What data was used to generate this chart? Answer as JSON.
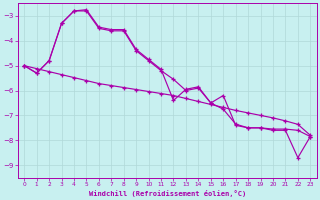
{
  "xlabel": "Windchill (Refroidissement éolien,°C)",
  "background_color": "#c8f0f0",
  "line_color": "#aa00aa",
  "grid_color": "#b0d8d8",
  "ylim": [
    -9.5,
    -2.5
  ],
  "xlim": [
    -0.5,
    23.5
  ],
  "yticks": [
    -9,
    -8,
    -7,
    -6,
    -5,
    -4,
    -3
  ],
  "xticks": [
    0,
    1,
    2,
    3,
    4,
    5,
    6,
    7,
    8,
    9,
    10,
    11,
    12,
    13,
    14,
    15,
    16,
    17,
    18,
    19,
    20,
    21,
    22,
    23
  ],
  "line1_x": [
    0,
    1,
    2,
    3,
    4,
    5,
    6,
    7,
    8,
    9,
    10,
    11,
    12,
    13,
    14,
    15,
    16,
    17,
    18,
    19,
    20,
    21,
    22,
    23
  ],
  "line1_y": [
    -5.0,
    -5.3,
    -4.8,
    -3.3,
    -2.8,
    -2.8,
    -3.5,
    -3.6,
    -3.6,
    -4.4,
    -4.8,
    -5.2,
    -5.55,
    -6.0,
    -5.9,
    -6.5,
    -6.2,
    -7.4,
    -7.5,
    -7.5,
    -7.55,
    -7.55,
    -7.6,
    -7.85
  ],
  "line2_x": [
    0,
    1,
    2,
    3,
    4,
    5,
    6,
    7,
    8,
    9,
    10,
    11,
    12,
    13,
    14,
    15,
    16,
    17,
    18,
    19,
    20,
    21,
    22,
    23
  ],
  "line2_y": [
    -5.0,
    -5.12,
    -5.24,
    -5.36,
    -5.48,
    -5.6,
    -5.72,
    -5.8,
    -5.88,
    -5.96,
    -6.04,
    -6.12,
    -6.2,
    -6.32,
    -6.44,
    -6.56,
    -6.68,
    -6.8,
    -6.9,
    -7.0,
    -7.1,
    -7.22,
    -7.36,
    -7.8
  ],
  "line3_x": [
    0,
    1,
    2,
    3,
    4,
    5,
    6,
    7,
    8,
    9,
    10,
    11,
    12,
    13,
    14,
    15,
    16,
    17,
    18,
    19,
    20,
    21,
    22,
    23
  ],
  "line3_y": [
    -5.0,
    -5.3,
    -4.8,
    -3.3,
    -2.8,
    -2.75,
    -3.45,
    -3.55,
    -3.55,
    -4.35,
    -4.75,
    -5.15,
    -6.4,
    -5.95,
    -5.85,
    -6.5,
    -6.75,
    -7.35,
    -7.5,
    -7.5,
    -7.6,
    -7.6,
    -8.7,
    -7.85
  ]
}
